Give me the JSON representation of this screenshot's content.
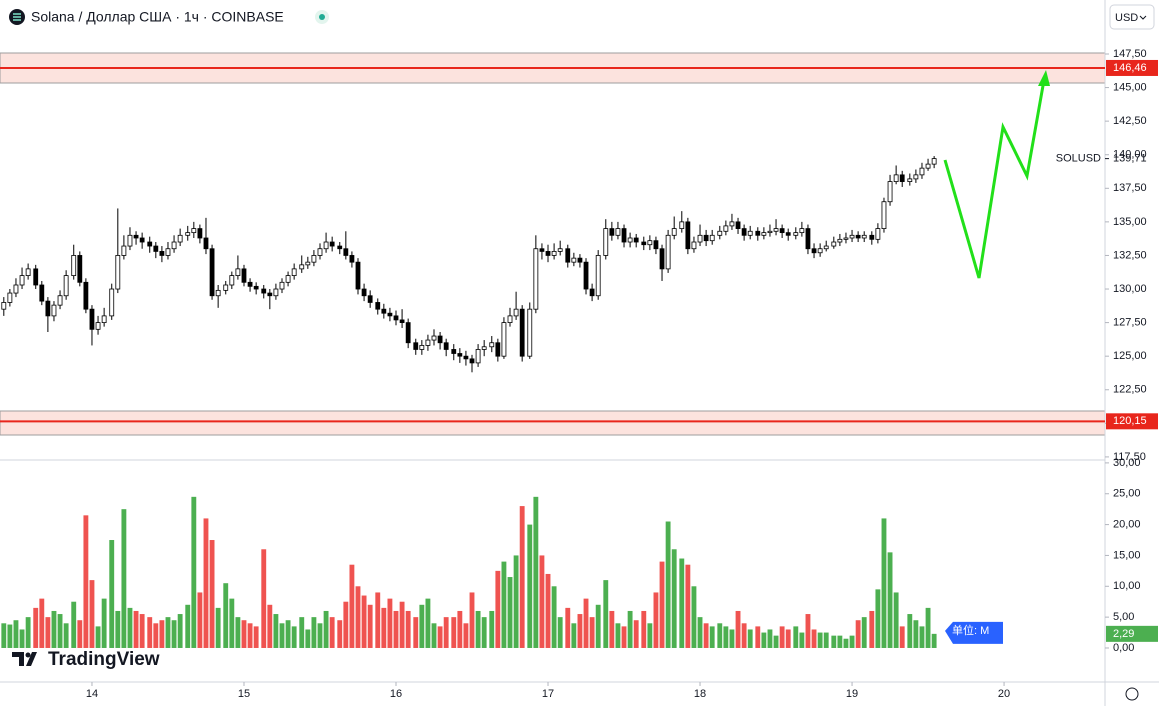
{
  "header": {
    "title": "Solana / Доллар США · 1ч · COINBASE",
    "currency": "USD",
    "symbol": "SOLUSD",
    "logo": "TradingView",
    "unit_badge": "单位: M"
  },
  "chart_data": {
    "type": "candlestick",
    "x": [
      13.42,
      13.46,
      13.5,
      13.54,
      13.58,
      13.63,
      13.67,
      13.71,
      13.75,
      13.79,
      13.83,
      13.88,
      13.92,
      13.96,
      14,
      14.04,
      14.08,
      14.13,
      14.17,
      14.21,
      14.25,
      14.29,
      14.33,
      14.38,
      14.42,
      14.46,
      14.5,
      14.54,
      14.58,
      14.63,
      14.67,
      14.71,
      14.75,
      14.79,
      14.83,
      14.88,
      14.92,
      14.96,
      15,
      15.04,
      15.08,
      15.13,
      15.17,
      15.21,
      15.25,
      15.29,
      15.33,
      15.38,
      15.42,
      15.46,
      15.5,
      15.54,
      15.58,
      15.63,
      15.67,
      15.71,
      15.75,
      15.79,
      15.83,
      15.88,
      15.92,
      15.96,
      16,
      16.04,
      16.08,
      16.13,
      16.17,
      16.21,
      16.25,
      16.29,
      16.33,
      16.38,
      16.42,
      16.46,
      16.5,
      16.54,
      16.58,
      16.63,
      16.67,
      16.71,
      16.75,
      16.79,
      16.83,
      16.88,
      16.92,
      16.96,
      17,
      17.04,
      17.08,
      17.13,
      17.17,
      17.21,
      17.25,
      17.29,
      17.33,
      17.38,
      17.42,
      17.46,
      17.5,
      17.54,
      17.58,
      17.63,
      17.67,
      17.71,
      17.75,
      17.79,
      17.83,
      17.88,
      17.92,
      17.96,
      18,
      18.04,
      18.08,
      18.13,
      18.17,
      18.21,
      18.25,
      18.29,
      18.33,
      18.38,
      18.42,
      18.46,
      18.5,
      18.54,
      18.58,
      18.63,
      18.67,
      18.71,
      18.75,
      18.79,
      18.83,
      18.88,
      18.92,
      18.96,
      19,
      19.04,
      19.08,
      19.13,
      19.17,
      19.21,
      19.25,
      19.29,
      19.33,
      19.38,
      19.42,
      19.46,
      19.5,
      19.54
    ],
    "open": [
      128.5,
      129.0,
      129.7,
      130.3,
      131.0,
      131.5,
      130.3,
      129.1,
      128.0,
      128.8,
      129.5,
      131.0,
      132.5,
      130.5,
      128.5,
      127.0,
      127.5,
      128.0,
      130.0,
      132.5,
      133.2,
      134.0,
      133.8,
      133.5,
      133.2,
      132.8,
      132.5,
      133.0,
      133.5,
      134.0,
      134.2,
      134.5,
      133.8,
      133.0,
      129.5,
      129.9,
      130.3,
      131.0,
      131.5,
      130.5,
      130.2,
      130.0,
      129.7,
      129.5,
      130.0,
      130.5,
      131.0,
      131.5,
      131.8,
      132.0,
      132.5,
      133.0,
      133.5,
      133.2,
      133.0,
      132.5,
      132.0,
      130.0,
      129.5,
      129.0,
      128.5,
      128.2,
      128.0,
      127.7,
      127.5,
      126.0,
      125.5,
      125.8,
      126.2,
      126.5,
      126.0,
      125.5,
      125.2,
      125.0,
      124.8,
      124.5,
      125.5,
      125.7,
      126.0,
      125.0,
      127.5,
      128.0,
      128.5,
      125.0,
      128.5,
      133.0,
      132.8,
      132.5,
      132.8,
      133.0,
      132.0,
      132.3,
      132.0,
      130.0,
      129.5,
      132.5,
      134.5,
      134.0,
      134.5,
      133.5,
      133.8,
      133.5,
      133.3,
      133.6,
      133.0,
      131.5,
      134.0,
      134.5,
      135.0,
      133.0,
      133.5,
      134.0,
      133.6,
      134.0,
      134.3,
      134.7,
      135.0,
      134.5,
      134.0,
      134.3,
      134.0,
      134.2,
      134.3,
      134.5,
      134.2,
      134.0,
      134.2,
      134.5,
      133.0,
      132.7,
      133.0,
      133.2,
      133.5,
      133.7,
      133.8,
      134.0,
      133.8,
      134.0,
      133.7,
      134.5,
      136.5,
      138.0,
      138.5,
      138.0,
      138.2,
      138.5,
      139.0,
      139.3
    ],
    "high": [
      129.4,
      130.0,
      130.8,
      131.6,
      131.9,
      131.8,
      130.6,
      129.4,
      129.1,
      129.9,
      131.4,
      133.3,
      132.8,
      130.8,
      128.8,
      128.0,
      128.6,
      130.4,
      136.0,
      134.0,
      134.6,
      134.3,
      134.2,
      133.9,
      133.5,
      133.2,
      133.5,
      134.0,
      134.5,
      134.7,
      135.0,
      134.8,
      135.3,
      133.3,
      130.3,
      130.6,
      131.3,
      132.5,
      131.8,
      130.8,
      130.5,
      130.3,
      130.0,
      130.4,
      130.8,
      131.3,
      131.9,
      132.5,
      132.4,
      132.9,
      133.4,
      134.2,
      133.9,
      133.5,
      134.3,
      132.8,
      132.3,
      130.4,
      129.9,
      129.3,
      128.9,
      128.6,
      128.4,
      128.5,
      127.8,
      126.3,
      126.2,
      126.6,
      127.0,
      126.8,
      126.3,
      125.9,
      125.6,
      125.4,
      125.1,
      125.9,
      126.2,
      126.5,
      126.3,
      127.9,
      128.6,
      129.8,
      128.8,
      129.0,
      134.0,
      133.4,
      133.3,
      133.4,
      133.6,
      133.3,
      132.7,
      132.6,
      132.3,
      130.4,
      132.9,
      135.2,
      135.0,
      135.0,
      134.8,
      134.2,
      134.1,
      133.9,
      134.0,
      133.9,
      133.3,
      134.4,
      135.4,
      135.8,
      135.3,
      133.9,
      134.8,
      134.4,
      134.4,
      134.7,
      135.1,
      135.6,
      135.3,
      134.8,
      134.7,
      134.6,
      134.6,
      134.8,
      135.2,
      134.8,
      134.5,
      134.6,
      135.0,
      134.8,
      133.4,
      133.4,
      133.6,
      133.9,
      134.1,
      134.2,
      134.4,
      134.3,
      134.3,
      134.3,
      134.9,
      136.8,
      138.5,
      139.2,
      138.8,
      138.6,
      138.9,
      139.4,
      139.7,
      139.9
    ],
    "low": [
      128.0,
      128.7,
      129.4,
      130.0,
      130.7,
      130.0,
      128.8,
      126.8,
      127.6,
      128.5,
      129.2,
      130.7,
      130.2,
      128.2,
      125.8,
      126.6,
      127.2,
      127.7,
      129.7,
      132.2,
      132.9,
      133.3,
      133.0,
      132.7,
      132.3,
      132.0,
      132.2,
      132.7,
      133.2,
      133.6,
      133.8,
      133.4,
      132.6,
      129.2,
      128.6,
      129.6,
      130.0,
      130.7,
      130.2,
      129.8,
      129.6,
      129.3,
      128.5,
      129.2,
      129.7,
      130.2,
      130.7,
      131.2,
      131.5,
      131.7,
      132.2,
      132.7,
      132.8,
      132.6,
      132.2,
      131.6,
      129.6,
      129.1,
      128.6,
      128.1,
      127.8,
      127.6,
      127.3,
      127.1,
      125.6,
      125.1,
      125.1,
      125.4,
      125.8,
      125.5,
      125.0,
      124.7,
      124.5,
      124.3,
      123.8,
      124.2,
      125.0,
      125.3,
      124.6,
      124.8,
      127.2,
      127.7,
      124.6,
      124.8,
      128.2,
      132.2,
      132.0,
      132.2,
      132.5,
      131.6,
      131.7,
      131.6,
      129.6,
      129.1,
      129.2,
      132.2,
      133.6,
      133.7,
      133.1,
      133.1,
      133.1,
      132.9,
      132.9,
      132.6,
      130.6,
      131.2,
      133.7,
      134.2,
      132.6,
      132.7,
      133.2,
      133.2,
      133.3,
      133.7,
      134.0,
      134.4,
      134.1,
      133.6,
      133.7,
      133.6,
      133.7,
      133.9,
      134.0,
      133.8,
      133.6,
      133.7,
      133.9,
      132.6,
      132.3,
      132.4,
      132.8,
      133.0,
      133.2,
      133.4,
      133.5,
      133.5,
      133.5,
      133.3,
      133.4,
      134.2,
      136.2,
      137.8,
      137.6,
      137.7,
      137.9,
      138.2,
      138.8,
      139.0
    ],
    "close": [
      129.0,
      129.7,
      130.3,
      131.0,
      131.5,
      130.3,
      129.1,
      128.0,
      128.8,
      129.5,
      131.0,
      132.5,
      130.5,
      128.5,
      127.0,
      127.5,
      128.0,
      130.0,
      132.5,
      133.2,
      134.0,
      133.8,
      133.5,
      133.2,
      132.8,
      132.5,
      133.0,
      133.5,
      134.0,
      134.2,
      134.5,
      133.8,
      133.0,
      129.5,
      129.9,
      130.3,
      131.0,
      131.5,
      130.5,
      130.2,
      130.0,
      129.7,
      129.5,
      130.0,
      130.5,
      131.0,
      131.5,
      131.8,
      132.0,
      132.5,
      133.0,
      133.5,
      133.2,
      133.0,
      132.5,
      132.0,
      130.0,
      129.5,
      129.0,
      128.5,
      128.2,
      128.0,
      127.7,
      127.5,
      126.0,
      125.5,
      125.8,
      126.2,
      126.5,
      126.0,
      125.5,
      125.2,
      125.0,
      124.8,
      124.5,
      125.5,
      125.7,
      126.0,
      125.0,
      127.5,
      128.0,
      128.5,
      125.0,
      128.5,
      133.0,
      132.8,
      132.5,
      132.8,
      133.0,
      132.0,
      132.3,
      132.0,
      130.0,
      129.5,
      132.5,
      134.5,
      134.0,
      134.5,
      133.5,
      133.8,
      133.5,
      133.3,
      133.6,
      133.0,
      131.5,
      134.0,
      134.5,
      135.0,
      133.0,
      133.5,
      134.0,
      133.6,
      134.0,
      134.3,
      134.7,
      135.0,
      134.5,
      134.0,
      134.3,
      134.0,
      134.2,
      134.3,
      134.5,
      134.2,
      134.0,
      134.2,
      134.5,
      133.0,
      132.7,
      133.0,
      133.2,
      133.5,
      133.7,
      133.8,
      134.0,
      133.8,
      134.0,
      133.7,
      134.5,
      136.5,
      138.0,
      138.5,
      138.0,
      138.2,
      138.5,
      139.0,
      139.3,
      139.71
    ],
    "volume": [
      4.0,
      3.8,
      4.5,
      3.0,
      5.0,
      6.5,
      8.0,
      5.0,
      6.0,
      5.5,
      4.0,
      7.5,
      4.5,
      21.5,
      11.0,
      3.5,
      8.0,
      17.5,
      6.0,
      22.5,
      6.5,
      6.0,
      5.5,
      5.0,
      4.0,
      4.5,
      5.0,
      4.5,
      5.5,
      7.0,
      24.5,
      9.0,
      21.0,
      17.5,
      6.5,
      10.5,
      8.0,
      5.0,
      4.5,
      4.0,
      3.5,
      16.0,
      7.0,
      5.5,
      4.0,
      4.5,
      3.5,
      5.0,
      3.0,
      5.0,
      4.0,
      6.0,
      5.0,
      4.5,
      7.5,
      13.5,
      10.0,
      8.5,
      7.0,
      9.0,
      6.5,
      8.0,
      6.0,
      7.5,
      6.0,
      5.0,
      7.0,
      8.0,
      4.0,
      3.5,
      5.0,
      5.0,
      6.0,
      4.0,
      9.0,
      6.0,
      5.0,
      6.0,
      12.5,
      14.0,
      11.5,
      15.0,
      23.0,
      20.0,
      24.5,
      15.0,
      12.0,
      10.0,
      5.0,
      6.5,
      4.0,
      5.5,
      8.0,
      5.0,
      7.0,
      11.0,
      6.0,
      4.0,
      3.5,
      6.0,
      4.5,
      6.0,
      4.0,
      9.0,
      14.0,
      20.5,
      16.0,
      14.5,
      13.5,
      10.0,
      5.0,
      4.0,
      3.5,
      4.0,
      3.5,
      3.0,
      6.0,
      4.0,
      3.0,
      3.5,
      2.5,
      3.0,
      2.0,
      3.5,
      3.0,
      3.5,
      2.5,
      5.5,
      3.0,
      2.5,
      2.5,
      2.0,
      2.0,
      1.5,
      2.0,
      4.5,
      5.0,
      6.0,
      9.5,
      21.0,
      15.5,
      9.0,
      3.5,
      5.5,
      4.5,
      3.5,
      6.5,
      2.29
    ],
    "xlim": [
      13.395,
      20.664
    ],
    "xticks": [
      14,
      15,
      16,
      17,
      18,
      19,
      20
    ],
    "ylim": [
      117.27,
      151.52
    ],
    "yticks": [
      {
        "value": 117.5,
        "label": "117,50"
      },
      {
        "value": 120,
        "label": "120,00"
      },
      {
        "value": 122.5,
        "label": "122,50"
      },
      {
        "value": 125,
        "label": "125,00"
      },
      {
        "value": 127.5,
        "label": "127,50"
      },
      {
        "value": 130,
        "label": "130,00"
      },
      {
        "value": 132.5,
        "label": "132,50"
      },
      {
        "value": 135,
        "label": "135,00"
      },
      {
        "value": 137.5,
        "label": "137,50"
      },
      {
        "value": 140,
        "label": "140,00"
      },
      {
        "value": 142.5,
        "label": "142,50"
      },
      {
        "value": 145,
        "label": "145,00"
      },
      {
        "value": 147.5,
        "label": "147,50"
      }
    ],
    "y2lim": [
      -5.19,
      30.47
    ],
    "y2ticks": [
      {
        "value": 0,
        "label": "0,00"
      },
      {
        "value": 5,
        "label": "5,00"
      },
      {
        "value": 10,
        "label": "10,00"
      },
      {
        "value": 15,
        "label": "15,00"
      },
      {
        "value": 20,
        "label": "20,00"
      },
      {
        "value": 25,
        "label": "25,00"
      },
      {
        "value": 30,
        "label": "30,00"
      }
    ],
    "levels": [
      {
        "value": 146.46,
        "label": "146,46"
      },
      {
        "value": 120.15,
        "label": "120,15"
      }
    ],
    "last_price": {
      "value": 139.71,
      "label": "139,71"
    },
    "last_volume": {
      "value": 2.29,
      "label": "2,29"
    },
    "up_color": "#ffffff",
    "down_color": "#000000",
    "volume_up_color": "#4caf50",
    "volume_down_color": "#ef5350",
    "level_color": "#e8261c"
  }
}
